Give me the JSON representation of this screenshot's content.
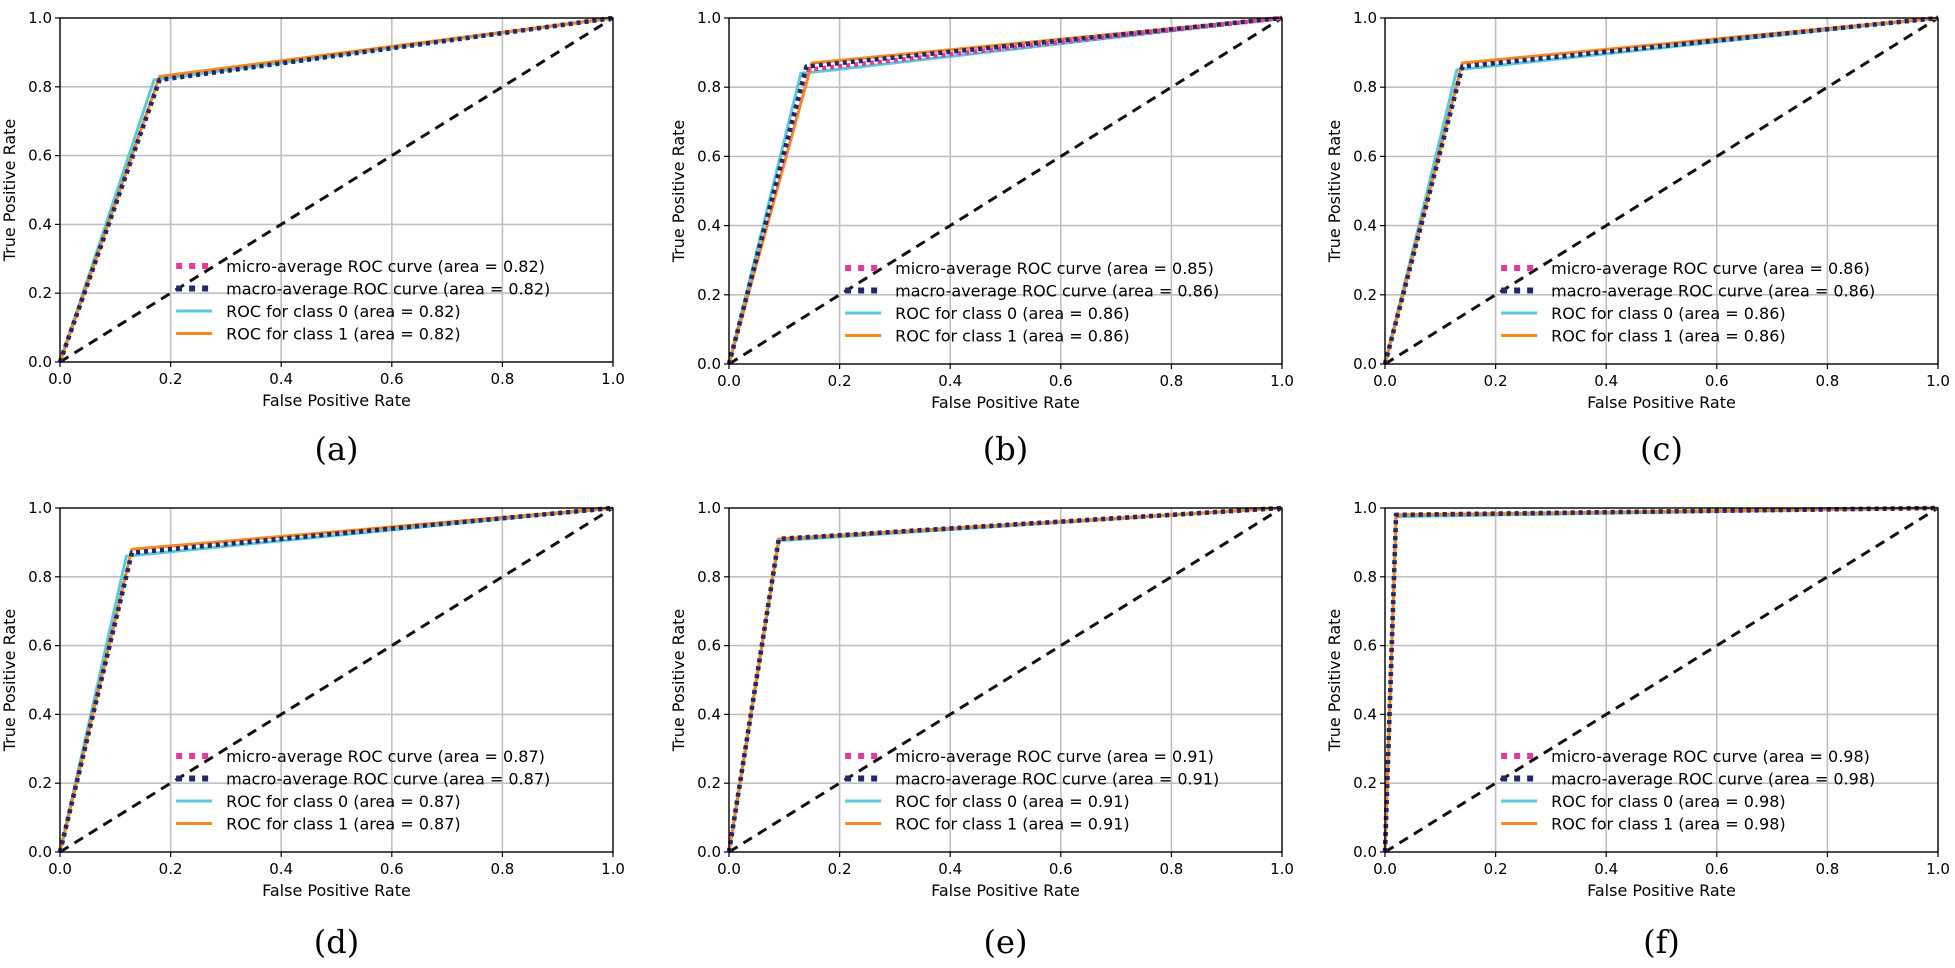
{
  "figure": {
    "panel_count": 6,
    "colors": {
      "micro": "#e6399b",
      "macro": "#1f2a6b",
      "class0": "#5bc8dc",
      "class1": "#f5891f",
      "chance": "#111111",
      "grid": "#c0c0c0"
    }
  },
  "chart_data": [
    {
      "type": "line",
      "caption": "(a)",
      "xlabel": "False Positive Rate",
      "ylabel": "True Positive Rate",
      "xlim": [
        0.0,
        1.0
      ],
      "ylim": [
        0.0,
        1.0
      ],
      "xticks": [
        "0.0",
        "0.2",
        "0.4",
        "0.6",
        "0.8",
        "1.0"
      ],
      "yticks": [
        "0.0",
        "0.2",
        "0.4",
        "0.6",
        "0.8",
        "1.0"
      ],
      "grid": true,
      "legend_position": "lower-right",
      "series": [
        {
          "name": "micro-average ROC curve (area = 0.82)",
          "style": "dotted",
          "color": "#e6399b",
          "x": [
            0,
            0.18,
            1
          ],
          "y": [
            0,
            0.82,
            1
          ]
        },
        {
          "name": "macro-average ROC curve (area = 0.82)",
          "style": "dotted",
          "color": "#1f2a6b",
          "x": [
            0,
            0.18,
            1
          ],
          "y": [
            0,
            0.82,
            1
          ]
        },
        {
          "name": "ROC for class 0 (area = 0.82)",
          "style": "solid",
          "color": "#5bc8dc",
          "x": [
            0,
            0.17,
            1
          ],
          "y": [
            0,
            0.82,
            1
          ]
        },
        {
          "name": "ROC for class 1 (area = 0.82)",
          "style": "solid",
          "color": "#f5891f",
          "x": [
            0,
            0.18,
            1
          ],
          "y": [
            0,
            0.83,
            1
          ]
        }
      ],
      "chance_line": {
        "x": [
          0,
          1
        ],
        "y": [
          0,
          1
        ]
      }
    },
    {
      "type": "line",
      "caption": "(b)",
      "xlabel": "False Positive Rate",
      "ylabel": "True Positive Rate",
      "xlim": [
        0.0,
        1.0
      ],
      "ylim": [
        0.0,
        1.0
      ],
      "xticks": [
        "0.0",
        "0.2",
        "0.4",
        "0.6",
        "0.8",
        "1.0"
      ],
      "yticks": [
        "0.0",
        "0.2",
        "0.4",
        "0.6",
        "0.8",
        "1.0"
      ],
      "grid": true,
      "legend_position": "lower-right",
      "series": [
        {
          "name": "micro-average ROC curve (area = 0.85)",
          "style": "dotted",
          "color": "#e6399b",
          "x": [
            0,
            0.14,
            1
          ],
          "y": [
            0,
            0.85,
            1
          ]
        },
        {
          "name": "macro-average ROC curve (area = 0.86)",
          "style": "dotted",
          "color": "#1f2a6b",
          "x": [
            0,
            0.14,
            1
          ],
          "y": [
            0,
            0.86,
            1
          ]
        },
        {
          "name": "ROC for class 0 (area = 0.86)",
          "style": "solid",
          "color": "#5bc8dc",
          "x": [
            0,
            0.13,
            0.19,
            1
          ],
          "y": [
            0,
            0.84,
            0.85,
            1
          ]
        },
        {
          "name": "ROC for class 1 (area = 0.86)",
          "style": "solid",
          "color": "#f5891f",
          "x": [
            0,
            0.15,
            1
          ],
          "y": [
            0,
            0.87,
            1
          ]
        }
      ],
      "chance_line": {
        "x": [
          0,
          1
        ],
        "y": [
          0,
          1
        ]
      }
    },
    {
      "type": "line",
      "caption": "(c)",
      "xlabel": "False Positive Rate",
      "ylabel": "True Positive Rate",
      "xlim": [
        0.0,
        1.0
      ],
      "ylim": [
        0.0,
        1.0
      ],
      "xticks": [
        "0.0",
        "0.2",
        "0.4",
        "0.6",
        "0.8",
        "1.0"
      ],
      "yticks": [
        "0.0",
        "0.2",
        "0.4",
        "0.6",
        "0.8",
        "1.0"
      ],
      "grid": true,
      "legend_position": "lower-right",
      "series": [
        {
          "name": "micro-average ROC curve (area = 0.86)",
          "style": "dotted",
          "color": "#e6399b",
          "x": [
            0,
            0.14,
            1
          ],
          "y": [
            0,
            0.86,
            1
          ]
        },
        {
          "name": "macro-average ROC curve (area = 0.86)",
          "style": "dotted",
          "color": "#1f2a6b",
          "x": [
            0,
            0.14,
            1
          ],
          "y": [
            0,
            0.86,
            1
          ]
        },
        {
          "name": "ROC for class 0 (area = 0.86)",
          "style": "solid",
          "color": "#5bc8dc",
          "x": [
            0,
            0.13,
            1
          ],
          "y": [
            0,
            0.85,
            1
          ]
        },
        {
          "name": "ROC for class 1 (area = 0.86)",
          "style": "solid",
          "color": "#f5891f",
          "x": [
            0,
            0.14,
            1
          ],
          "y": [
            0,
            0.87,
            1
          ]
        }
      ],
      "chance_line": {
        "x": [
          0,
          1
        ],
        "y": [
          0,
          1
        ]
      }
    },
    {
      "type": "line",
      "caption": "(d)",
      "xlabel": "False Positive Rate",
      "ylabel": "True Positive Rate",
      "xlim": [
        0.0,
        1.0
      ],
      "ylim": [
        0.0,
        1.0
      ],
      "xticks": [
        "0.0",
        "0.2",
        "0.4",
        "0.6",
        "0.8",
        "1.0"
      ],
      "yticks": [
        "0.0",
        "0.2",
        "0.4",
        "0.6",
        "0.8",
        "1.0"
      ],
      "grid": true,
      "legend_position": "lower-right",
      "series": [
        {
          "name": "micro-average ROC curve (area = 0.87)",
          "style": "dotted",
          "color": "#e6399b",
          "x": [
            0,
            0.13,
            1
          ],
          "y": [
            0,
            0.87,
            1
          ]
        },
        {
          "name": "macro-average ROC curve (area = 0.87)",
          "style": "dotted",
          "color": "#1f2a6b",
          "x": [
            0,
            0.13,
            1
          ],
          "y": [
            0,
            0.87,
            1
          ]
        },
        {
          "name": "ROC for class 0 (area = 0.87)",
          "style": "solid",
          "color": "#5bc8dc",
          "x": [
            0,
            0.12,
            1
          ],
          "y": [
            0,
            0.86,
            1
          ]
        },
        {
          "name": "ROC for class 1 (area = 0.87)",
          "style": "solid",
          "color": "#f5891f",
          "x": [
            0,
            0.13,
            1
          ],
          "y": [
            0,
            0.88,
            1
          ]
        }
      ],
      "chance_line": {
        "x": [
          0,
          1
        ],
        "y": [
          0,
          1
        ]
      }
    },
    {
      "type": "line",
      "caption": "(e)",
      "xlabel": "False Positive Rate",
      "ylabel": "True Positive Rate",
      "xlim": [
        0.0,
        1.0
      ],
      "ylim": [
        0.0,
        1.0
      ],
      "xticks": [
        "0.0",
        "0.2",
        "0.4",
        "0.6",
        "0.8",
        "1.0"
      ],
      "yticks": [
        "0.0",
        "0.2",
        "0.4",
        "0.6",
        "0.8",
        "1.0"
      ],
      "grid": true,
      "legend_position": "lower-right",
      "series": [
        {
          "name": "micro-average ROC curve (area = 0.91)",
          "style": "dotted",
          "color": "#e6399b",
          "x": [
            0,
            0.09,
            1
          ],
          "y": [
            0,
            0.91,
            1
          ]
        },
        {
          "name": "macro-average ROC curve (area = 0.91)",
          "style": "dotted",
          "color": "#1f2a6b",
          "x": [
            0,
            0.09,
            1
          ],
          "y": [
            0,
            0.91,
            1
          ]
        },
        {
          "name": "ROC for class 0 (area = 0.91)",
          "style": "solid",
          "color": "#5bc8dc",
          "x": [
            0,
            0.09,
            1
          ],
          "y": [
            0,
            0.905,
            1
          ]
        },
        {
          "name": "ROC for class 1 (area = 0.91)",
          "style": "solid",
          "color": "#f5891f",
          "x": [
            0,
            0.09,
            1
          ],
          "y": [
            0,
            0.91,
            1
          ]
        }
      ],
      "chance_line": {
        "x": [
          0,
          1
        ],
        "y": [
          0,
          1
        ]
      }
    },
    {
      "type": "line",
      "caption": "(f)",
      "xlabel": "False Positive Rate",
      "ylabel": "True Positive Rate",
      "xlim": [
        0.0,
        1.0
      ],
      "ylim": [
        0.0,
        1.0
      ],
      "xticks": [
        "0.0",
        "0.2",
        "0.4",
        "0.6",
        "0.8",
        "1.0"
      ],
      "yticks": [
        "0.0",
        "0.2",
        "0.4",
        "0.6",
        "0.8",
        "1.0"
      ],
      "grid": true,
      "legend_position": "lower-right",
      "series": [
        {
          "name": "micro-average ROC curve (area = 0.98)",
          "style": "dotted",
          "color": "#e6399b",
          "x": [
            0,
            0.02,
            1
          ],
          "y": [
            0,
            0.98,
            1
          ]
        },
        {
          "name": "macro-average ROC curve (area = 0.98)",
          "style": "dotted",
          "color": "#1f2a6b",
          "x": [
            0,
            0.02,
            1
          ],
          "y": [
            0,
            0.98,
            1
          ]
        },
        {
          "name": "ROC for class 0 (area = 0.98)",
          "style": "solid",
          "color": "#5bc8dc",
          "x": [
            0,
            0.02,
            1
          ],
          "y": [
            0,
            0.975,
            1
          ]
        },
        {
          "name": "ROC for class 1 (area = 0.98)",
          "style": "solid",
          "color": "#f5891f",
          "x": [
            0,
            0.02,
            1
          ],
          "y": [
            0,
            0.98,
            1
          ]
        }
      ],
      "chance_line": {
        "x": [
          0,
          1
        ],
        "y": [
          0,
          1
        ]
      }
    }
  ]
}
